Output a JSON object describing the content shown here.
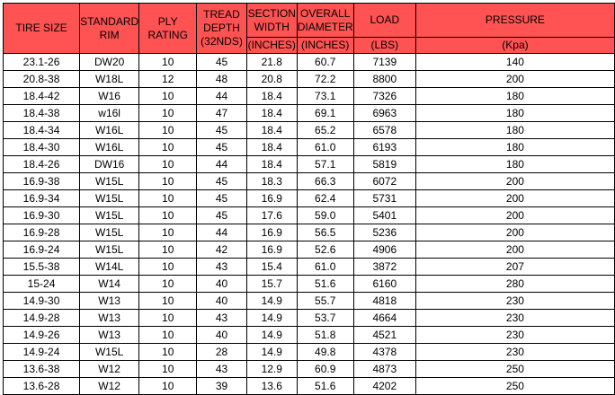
{
  "header_color": "#FF5252",
  "headers": {
    "tire_size": "TIRE SIZE",
    "standard_rim": "STANDARD RIM",
    "ply_rating": "PLY RATING",
    "tread_depth": "TREAD DEPTH",
    "tread_depth_unit": "(32NDS)",
    "section_width": "SECTION WIDTH",
    "section_width_unit": "(INCHES)",
    "overall_diameter": "OVERALL DIAMETER",
    "overall_diameter_unit": "(INCHES)",
    "load": "LOAD",
    "load_unit": "(LBS)",
    "pressure": "PRESSURE",
    "pressure_unit": "(Kpa)"
  },
  "rows": [
    [
      "23.1-26",
      "DW20",
      "10",
      "45",
      "21.8",
      "60.7",
      "7139",
      "140"
    ],
    [
      "20.8-38",
      "W18L",
      "12",
      "48",
      "20.8",
      "72.2",
      "8800",
      "200"
    ],
    [
      "18.4-42",
      "W16",
      "10",
      "44",
      "18.4",
      "73.1",
      "7326",
      "180"
    ],
    [
      "18.4-38",
      "w16l",
      "10",
      "47",
      "18.4",
      "69.1",
      "6963",
      "180"
    ],
    [
      "18.4-34",
      "W16L",
      "10",
      "45",
      "18.4",
      "65.2",
      "6578",
      "180"
    ],
    [
      "18.4-30",
      "W16L",
      "10",
      "45",
      "18.4",
      "61.0",
      "6193",
      "180"
    ],
    [
      "18.4-26",
      "DW16",
      "10",
      "44",
      "18.4",
      "57.1",
      "5819",
      "180"
    ],
    [
      "16.9-38",
      "W15L",
      "10",
      "45",
      "18.3",
      "66.3",
      "6072",
      "200"
    ],
    [
      "16.9-34",
      "W15L",
      "10",
      "45",
      "16.9",
      "62.4",
      "5731",
      "200"
    ],
    [
      "16.9-30",
      "W15L",
      "10",
      "45",
      "17.6",
      "59.0",
      "5401",
      "200"
    ],
    [
      "16.9-28",
      "W15L",
      "10",
      "44",
      "16.9",
      "56.5",
      "5236",
      "200"
    ],
    [
      "16.9-24",
      "W15L",
      "10",
      "42",
      "16.9",
      "52.6",
      "4906",
      "200"
    ],
    [
      "15.5-38",
      "W14L",
      "10",
      "43",
      "15.4",
      "61.0",
      "3872",
      "207"
    ],
    [
      "15-24",
      "W14",
      "10",
      "40",
      "15.7",
      "51.6",
      "6160",
      "280"
    ],
    [
      "14.9-30",
      "W13",
      "10",
      "40",
      "14.9",
      "55.7",
      "4818",
      "230"
    ],
    [
      "14.9-28",
      "W13",
      "10",
      "43",
      "14.9",
      "53.7",
      "4664",
      "230"
    ],
    [
      "14.9-26",
      "W13",
      "10",
      "40",
      "14.9",
      "51.8",
      "4521",
      "230"
    ],
    [
      "14.9-24",
      "W15L",
      "10",
      "28",
      "14.9",
      "49.8",
      "4378",
      "230"
    ],
    [
      "13.6-38",
      "W12",
      "10",
      "43",
      "12.9",
      "60.9",
      "4873",
      "250"
    ],
    [
      "13.6-28",
      "W12",
      "10",
      "39",
      "13.6",
      "51.6",
      "4202",
      "250"
    ]
  ]
}
